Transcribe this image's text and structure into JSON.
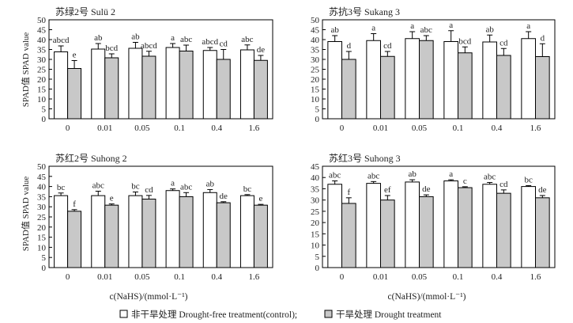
{
  "figure": {
    "ylabel": "SPAD值 SPAD value",
    "xlabel": "c(NaHS)/(mmol·L⁻¹)",
    "legend": {
      "control": "非干旱处理 Drought-free treatment(control);",
      "drought": "干旱处理 Drought treatment"
    }
  },
  "colors": {
    "control_fill": "#ffffff",
    "drought_fill": "#c8c8c8",
    "stroke": "#000000"
  },
  "chart_data": [
    {
      "type": "bar",
      "title": "苏绿2号 Sulü 2",
      "categories": [
        "0",
        "0.01",
        "0.05",
        "0.1",
        "0.4",
        "1.6"
      ],
      "ylim": [
        0,
        50
      ],
      "yticks": [
        0,
        5,
        10,
        15,
        20,
        25,
        30,
        35,
        40,
        45,
        50
      ],
      "series": [
        {
          "name": "control",
          "values": [
            33.8,
            35.2,
            35.6,
            36.0,
            34.5,
            34.8
          ],
          "errors": [
            3.0,
            2.8,
            3.0,
            2.0,
            1.5,
            2.5
          ],
          "labels": [
            "abcd",
            "ab",
            "ab",
            "a",
            "abcd",
            "abc"
          ]
        },
        {
          "name": "drought",
          "values": [
            25.4,
            30.8,
            31.6,
            34.2,
            30.0,
            29.5
          ],
          "errors": [
            4.0,
            2.0,
            2.5,
            3.0,
            5.0,
            2.5
          ],
          "labels": [
            "e",
            "bcd",
            "abcd",
            "abc",
            "cd",
            "de"
          ]
        }
      ]
    },
    {
      "type": "bar",
      "title": "苏抗3号 Sukang 3",
      "categories": [
        "0",
        "0.01",
        "0.05",
        "0.1",
        "0.4",
        "1.6"
      ],
      "ylim": [
        0,
        50
      ],
      "yticks": [
        0,
        5,
        10,
        15,
        20,
        25,
        30,
        35,
        40,
        45,
        50
      ],
      "series": [
        {
          "name": "control",
          "values": [
            39.0,
            39.5,
            40.5,
            39.0,
            38.8,
            40.5
          ],
          "errors": [
            3.0,
            3.5,
            3.5,
            5.5,
            3.5,
            3.5
          ],
          "labels": [
            "ab",
            "a",
            "a",
            "a",
            "ab",
            "a"
          ]
        },
        {
          "name": "drought",
          "values": [
            30.0,
            31.5,
            39.5,
            33.3,
            32.0,
            31.4
          ],
          "errors": [
            4.0,
            2.5,
            2.5,
            3.0,
            3.5,
            6.5
          ],
          "labels": [
            "d",
            "cd",
            "abc",
            "bcd",
            "cd",
            "d"
          ]
        }
      ]
    },
    {
      "type": "bar",
      "title": "苏红2号 Suhong 2",
      "categories": [
        "0",
        "0.01",
        "0.05",
        "0.1",
        "0.4",
        "1.6"
      ],
      "ylim": [
        0,
        50
      ],
      "yticks": [
        0,
        5,
        10,
        15,
        20,
        25,
        30,
        35,
        40,
        45,
        50
      ],
      "series": [
        {
          "name": "control",
          "values": [
            35.5,
            35.5,
            35.5,
            38.0,
            37.0,
            35.5
          ],
          "errors": [
            1.3,
            2.2,
            1.8,
            0.8,
            1.5,
            0.5
          ],
          "labels": [
            "bc",
            "abc",
            "bc",
            "a",
            "ab",
            "bc"
          ]
        },
        {
          "name": "drought",
          "values": [
            27.8,
            30.8,
            33.8,
            35.0,
            32.0,
            30.8
          ],
          "errors": [
            0.8,
            0.6,
            1.8,
            2.0,
            0.5,
            0.4
          ],
          "labels": [
            "f",
            "e",
            "cd",
            "abc",
            "de",
            "e"
          ]
        }
      ]
    },
    {
      "type": "bar",
      "title": "苏红3号 Suhong 3",
      "categories": [
        "0",
        "0.01",
        "0.05",
        "0.1",
        "0.4",
        "1.6"
      ],
      "ylim": [
        0,
        45
      ],
      "yticks": [
        0,
        5,
        10,
        15,
        20,
        25,
        30,
        35,
        40,
        45
      ],
      "series": [
        {
          "name": "control",
          "values": [
            37.0,
            37.4,
            38.0,
            38.5,
            37.0,
            36.0
          ],
          "errors": [
            1.5,
            0.8,
            1.0,
            0.5,
            0.8,
            0.4
          ],
          "labels": [
            "abc",
            "abc",
            "ab",
            "a",
            "abc",
            "bc"
          ]
        },
        {
          "name": "drought",
          "values": [
            28.5,
            30.0,
            31.5,
            35.5,
            33.0,
            31.0
          ],
          "errors": [
            2.5,
            2.0,
            0.8,
            0.4,
            1.5,
            1.0
          ],
          "labels": [
            "f",
            "ef",
            "de",
            "c",
            "cd",
            "de"
          ]
        }
      ]
    }
  ]
}
